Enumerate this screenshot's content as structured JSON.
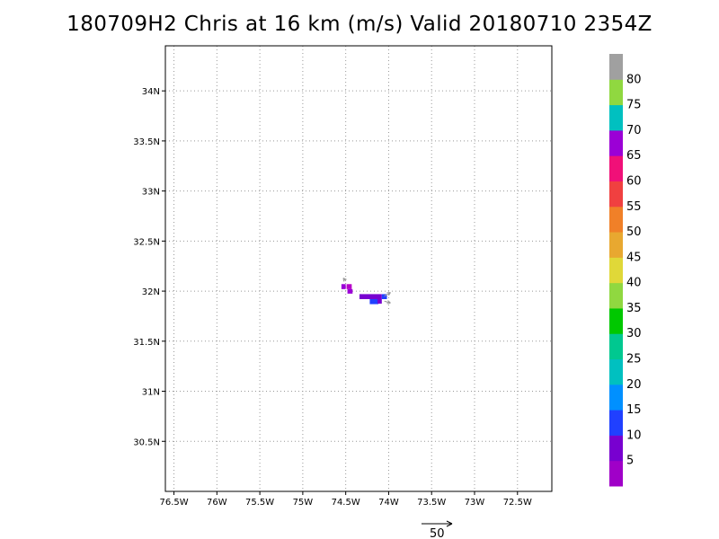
{
  "title": "180709H2 Chris at 16 km (m/s) Valid 20180710 2354Z",
  "map": {
    "lon_range": [
      -76.6,
      -72.1
    ],
    "lat_range": [
      30.0,
      34.45
    ],
    "lon_ticks": [
      {
        "value": -76.5,
        "label": "76.5W"
      },
      {
        "value": -76,
        "label": "76W"
      },
      {
        "value": -75.5,
        "label": "75.5W"
      },
      {
        "value": -75,
        "label": "75W"
      },
      {
        "value": -74.5,
        "label": "74.5W"
      },
      {
        "value": -74,
        "label": "74W"
      },
      {
        "value": -73.5,
        "label": "73.5W"
      },
      {
        "value": -73,
        "label": "73W"
      },
      {
        "value": -72.5,
        "label": "72.5W"
      }
    ],
    "lat_ticks": [
      {
        "value": 34,
        "label": "34N"
      },
      {
        "value": 33.5,
        "label": "33.5N"
      },
      {
        "value": 33,
        "label": "33N"
      },
      {
        "value": 32.5,
        "label": "32.5N"
      },
      {
        "value": 32,
        "label": "32N"
      },
      {
        "value": 31.5,
        "label": "31.5N"
      },
      {
        "value": 31,
        "label": "31N"
      },
      {
        "value": 30.5,
        "label": "30.5N"
      }
    ],
    "grid": "dotted"
  },
  "wind_cells": [
    {
      "lon": -74.55,
      "lat": 32.02,
      "w": 0.05,
      "h": 0.05,
      "color": "#9b00d6"
    },
    {
      "lon": -74.49,
      "lat": 32.02,
      "w": 0.06,
      "h": 0.05,
      "color": "#b700c8"
    },
    {
      "lon": -74.48,
      "lat": 31.975,
      "w": 0.06,
      "h": 0.045,
      "color": "#9b00d6"
    },
    {
      "lon": -74.34,
      "lat": 31.92,
      "w": 0.26,
      "h": 0.05,
      "color": "#7800d0"
    },
    {
      "lon": -74.08,
      "lat": 31.92,
      "w": 0.06,
      "h": 0.05,
      "color": "#2040ff"
    },
    {
      "lon": -74.22,
      "lat": 31.87,
      "w": 0.1,
      "h": 0.05,
      "color": "#2040ff"
    },
    {
      "lon": -74.13,
      "lat": 31.875,
      "w": 0.05,
      "h": 0.045,
      "color": "#7800d0"
    }
  ],
  "wind_vectors": [
    {
      "lon": -74.5,
      "lat": 32.1,
      "u": -4,
      "v": 5
    },
    {
      "lon": -74.05,
      "lat": 31.95,
      "u": 10,
      "v": 6
    },
    {
      "lon": -74.05,
      "lat": 31.9,
      "u": 10,
      "v": -3
    }
  ],
  "colorbar": {
    "colors": [
      "#a000c8",
      "#7800d0",
      "#2040ff",
      "#0090ff",
      "#00c0c0",
      "#00c890",
      "#00c800",
      "#90d840",
      "#e0d838",
      "#e8a830",
      "#f08028",
      "#f04040",
      "#f01078",
      "#9b00d6",
      "#00c0c0",
      "#90d840",
      "#a0a0a0"
    ],
    "labels": [
      "5",
      "10",
      "15",
      "20",
      "25",
      "30",
      "35",
      "40",
      "45",
      "50",
      "55",
      "60",
      "65",
      "70",
      "75",
      "80"
    ]
  },
  "reference_vector": {
    "label": "50"
  }
}
